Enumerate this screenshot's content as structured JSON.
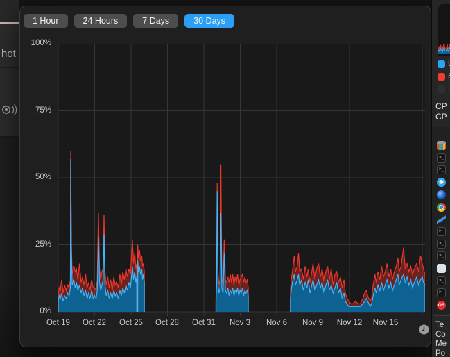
{
  "background_window": {
    "partial_label": "hot"
  },
  "time_range_tabs": {
    "options": [
      "1 Hour",
      "24 Hours",
      "7 Days",
      "30 Days"
    ],
    "selected": "30 Days"
  },
  "chart_data": {
    "type": "area",
    "title": "",
    "xlabel": "",
    "ylabel": "",
    "legend_position": "none",
    "grid": true,
    "y_range": [
      0,
      100
    ],
    "x_range": [
      0,
      30.23
    ],
    "y_ticks": [
      {
        "pct": 100,
        "label": "100%"
      },
      {
        "pct": 75,
        "label": "75%"
      },
      {
        "pct": 50,
        "label": "50%"
      },
      {
        "pct": 25,
        "label": "25%"
      },
      {
        "pct": 0,
        "label": "0%"
      }
    ],
    "x_ticks": [
      {
        "day": 0,
        "label": "Oct 19"
      },
      {
        "day": 3,
        "label": "Oct 22"
      },
      {
        "day": 6,
        "label": "Oct 25"
      },
      {
        "day": 9,
        "label": "Oct 28"
      },
      {
        "day": 12,
        "label": "Oct 31"
      },
      {
        "day": 15,
        "label": "Nov 3"
      },
      {
        "day": 18,
        "label": "Nov 6"
      },
      {
        "day": 21,
        "label": "Nov 9"
      },
      {
        "day": 24,
        "label": "Nov 12"
      },
      {
        "day": 27,
        "label": "Nov 15"
      }
    ],
    "x_gridline_days": [
      0,
      3,
      6,
      9,
      12,
      15,
      18,
      21,
      24,
      27,
      30
    ],
    "series_names": [
      "user_pct",
      "user_plus_system_pct"
    ],
    "colors": {
      "user_line": "#45b4f7",
      "user_fill": "#0e6292",
      "system_line": "#ee372a",
      "system_fill": "rgba(224,48,37,0.42)",
      "grid": "#353535",
      "plot_bg": "#191919"
    },
    "point_format": "[day_offset_from_Oct19, user_pct, user_plus_system_pct]",
    "segments": [
      {
        "points": [
          [
            0.0,
            4,
            6
          ],
          [
            0.08,
            6,
            9
          ],
          [
            0.17,
            5,
            8
          ],
          [
            0.28,
            7,
            12
          ],
          [
            0.4,
            4,
            7
          ],
          [
            0.52,
            6,
            10
          ],
          [
            0.65,
            5,
            8
          ],
          [
            0.78,
            7,
            10
          ],
          [
            0.9,
            6,
            9
          ],
          [
            1.0,
            9,
            12
          ],
          [
            1.03,
            57,
            60
          ],
          [
            1.08,
            22,
            26
          ],
          [
            1.15,
            10,
            14
          ],
          [
            1.28,
            12,
            17
          ],
          [
            1.4,
            9,
            15
          ],
          [
            1.5,
            11,
            16
          ],
          [
            1.62,
            8,
            12
          ],
          [
            1.75,
            10,
            18
          ],
          [
            1.88,
            7,
            11
          ],
          [
            2.0,
            9,
            13
          ],
          [
            2.12,
            6,
            10
          ],
          [
            2.25,
            8,
            14
          ],
          [
            2.38,
            5,
            9
          ],
          [
            2.5,
            7,
            11
          ],
          [
            2.62,
            5,
            8
          ],
          [
            2.75,
            8,
            12
          ],
          [
            2.88,
            5,
            9
          ],
          [
            3.0,
            6,
            9
          ],
          [
            3.12,
            5,
            8
          ],
          [
            3.22,
            8,
            12
          ],
          [
            3.31,
            28,
            37
          ],
          [
            3.4,
            11,
            16
          ],
          [
            3.5,
            8,
            12
          ],
          [
            3.6,
            10,
            15
          ],
          [
            3.7,
            12,
            16
          ],
          [
            3.77,
            29,
            36
          ],
          [
            3.85,
            10,
            15
          ],
          [
            3.95,
            6,
            10
          ],
          [
            4.08,
            8,
            13
          ],
          [
            4.2,
            5,
            9
          ],
          [
            4.32,
            7,
            12
          ],
          [
            4.45,
            5,
            8
          ],
          [
            4.58,
            8,
            13
          ],
          [
            4.7,
            6,
            10
          ],
          [
            4.82,
            7,
            11
          ],
          [
            4.95,
            5,
            9
          ],
          [
            5.08,
            8,
            14
          ],
          [
            5.2,
            6,
            10
          ],
          [
            5.32,
            9,
            15
          ],
          [
            5.45,
            7,
            12
          ],
          [
            5.58,
            10,
            16
          ],
          [
            5.7,
            8,
            13
          ],
          [
            5.82,
            11,
            16
          ],
          [
            5.95,
            9,
            14
          ],
          [
            6.11,
            17,
            27
          ],
          [
            6.2,
            12,
            18
          ],
          [
            6.3,
            15,
            22
          ],
          [
            6.4,
            11,
            16
          ],
          [
            6.47,
            13,
            18
          ]
        ]
      },
      {
        "points": [
          [
            6.55,
            19,
            25
          ],
          [
            6.62,
            15,
            20
          ],
          [
            6.7,
            17,
            23
          ],
          [
            6.78,
            14,
            19
          ],
          [
            6.88,
            16,
            21
          ],
          [
            6.95,
            12,
            17
          ],
          [
            7.02,
            14,
            18
          ],
          [
            7.09,
            11,
            15
          ]
        ]
      },
      {
        "points": [
          [
            13.0,
            4,
            6
          ],
          [
            13.05,
            10,
            12
          ],
          [
            13.1,
            45,
            48
          ],
          [
            13.17,
            10,
            14
          ],
          [
            13.25,
            7,
            10
          ],
          [
            13.33,
            9,
            12
          ],
          [
            13.4,
            37,
            55
          ],
          [
            13.48,
            9,
            13
          ],
          [
            13.58,
            7,
            10
          ],
          [
            13.68,
            22,
            27
          ],
          [
            13.78,
            8,
            12
          ],
          [
            13.88,
            7,
            11
          ],
          [
            13.98,
            9,
            13
          ],
          [
            14.08,
            6,
            11
          ],
          [
            14.18,
            8,
            14
          ],
          [
            14.28,
            7,
            11
          ],
          [
            14.38,
            9,
            14
          ],
          [
            14.48,
            6,
            10
          ],
          [
            14.58,
            8,
            13
          ],
          [
            14.68,
            7,
            11
          ],
          [
            14.78,
            9,
            14
          ],
          [
            14.88,
            6,
            10
          ],
          [
            14.98,
            8,
            12
          ],
          [
            15.08,
            7,
            13
          ],
          [
            15.18,
            9,
            14
          ],
          [
            15.28,
            6,
            11
          ],
          [
            15.38,
            8,
            13
          ],
          [
            15.48,
            7,
            11
          ],
          [
            15.58,
            8,
            12
          ],
          [
            15.66,
            6,
            9
          ]
        ]
      },
      {
        "points": [
          [
            19.14,
            5,
            8
          ],
          [
            19.2,
            8,
            12
          ],
          [
            19.3,
            11,
            15
          ],
          [
            19.45,
            14,
            21
          ],
          [
            19.55,
            10,
            15
          ],
          [
            19.7,
            12,
            17
          ],
          [
            19.8,
            14,
            22
          ],
          [
            19.9,
            10,
            15
          ],
          [
            20.05,
            12,
            16
          ],
          [
            20.2,
            8,
            12
          ],
          [
            20.35,
            11,
            17
          ],
          [
            20.5,
            9,
            13
          ],
          [
            20.6,
            12,
            16
          ],
          [
            20.75,
            7,
            11
          ],
          [
            20.9,
            10,
            15
          ],
          [
            21.0,
            12,
            18
          ],
          [
            21.15,
            8,
            12
          ],
          [
            21.3,
            10,
            16
          ],
          [
            21.45,
            12,
            18
          ],
          [
            21.6,
            9,
            13
          ],
          [
            21.75,
            11,
            16
          ],
          [
            21.9,
            7,
            11
          ],
          [
            22.05,
            10,
            15
          ],
          [
            22.2,
            12,
            17
          ],
          [
            22.35,
            8,
            12
          ],
          [
            22.5,
            10,
            16
          ],
          [
            22.65,
            7,
            10
          ],
          [
            22.8,
            9,
            14
          ],
          [
            22.95,
            11,
            15
          ],
          [
            23.1,
            7,
            11
          ],
          [
            23.25,
            9,
            13
          ],
          [
            23.4,
            5,
            9
          ],
          [
            23.55,
            7,
            12
          ],
          [
            23.66,
            4,
            7
          ],
          [
            23.8,
            3,
            5
          ],
          [
            23.95,
            2,
            4
          ],
          [
            24.1,
            2,
            3
          ],
          [
            24.3,
            2,
            3
          ],
          [
            24.5,
            2,
            4
          ],
          [
            24.7,
            2,
            3
          ],
          [
            24.9,
            2,
            3
          ],
          [
            25.1,
            3,
            5
          ],
          [
            25.25,
            4,
            7
          ],
          [
            25.4,
            5,
            8
          ],
          [
            25.5,
            4,
            6
          ],
          [
            25.6,
            3,
            5
          ],
          [
            25.7,
            2,
            4
          ],
          [
            25.83,
            3,
            5
          ],
          [
            25.95,
            6,
            10
          ],
          [
            26.1,
            9,
            14
          ],
          [
            26.2,
            7,
            11
          ],
          [
            26.35,
            10,
            15
          ],
          [
            26.5,
            8,
            12
          ],
          [
            26.65,
            11,
            17
          ],
          [
            26.8,
            8,
            13
          ],
          [
            26.95,
            10,
            15
          ],
          [
            27.1,
            12,
            18
          ],
          [
            27.25,
            9,
            13
          ],
          [
            27.4,
            11,
            16
          ],
          [
            27.55,
            8,
            12
          ],
          [
            27.7,
            10,
            15
          ],
          [
            27.85,
            12,
            17
          ],
          [
            28.0,
            14,
            20
          ],
          [
            28.1,
            10,
            15
          ],
          [
            28.25,
            12,
            17
          ],
          [
            28.46,
            14,
            24
          ],
          [
            28.6,
            11,
            16
          ],
          [
            28.75,
            13,
            18
          ],
          [
            28.9,
            10,
            15
          ],
          [
            29.05,
            12,
            17
          ],
          [
            29.2,
            9,
            14
          ],
          [
            29.35,
            11,
            16
          ],
          [
            29.54,
            13,
            18
          ],
          [
            29.7,
            10,
            15
          ],
          [
            29.85,
            12,
            21
          ],
          [
            30.0,
            13,
            18
          ],
          [
            30.1,
            11,
            16
          ],
          [
            30.23,
            10,
            14
          ]
        ]
      }
    ]
  },
  "sidebar": {
    "mini_chart": {
      "user": [
        3,
        6,
        4,
        8,
        5,
        3,
        7,
        10,
        5,
        4,
        6,
        8,
        4,
        6,
        9,
        5
      ],
      "total": [
        6,
        10,
        7,
        12,
        9,
        6,
        11,
        15,
        9,
        7,
        10,
        13,
        7,
        10,
        14,
        8
      ]
    },
    "legend": [
      {
        "label": "U",
        "color": "#2aa2f6"
      },
      {
        "label": "S",
        "color": "#f23b2e"
      },
      {
        "label": "I",
        "color": "#2f2f2f"
      }
    ],
    "cpu_lines": [
      "CP",
      "CP"
    ],
    "icons": [
      {
        "type": "color-grid",
        "label": ""
      },
      {
        "type": "terminal",
        "label": ">_"
      },
      {
        "type": "terminal",
        "label": ">_"
      },
      {
        "type": "compass",
        "label": ""
      },
      {
        "type": "orb",
        "label": ""
      },
      {
        "type": "chrome",
        "label": ""
      },
      {
        "type": "swoosh",
        "label": ""
      },
      {
        "type": "terminal",
        "label": ">_"
      },
      {
        "type": "terminal",
        "label": ">_"
      },
      {
        "type": "terminal",
        "label": ">_"
      },
      {
        "type": "light",
        "label": ""
      },
      {
        "type": "terminal",
        "label": ">_"
      },
      {
        "type": "terminal",
        "label": ">_"
      },
      {
        "type": "os",
        "label": "OS"
      }
    ],
    "bottom_labels": [
      "Te",
      "Co",
      "Me",
      "Po"
    ]
  }
}
